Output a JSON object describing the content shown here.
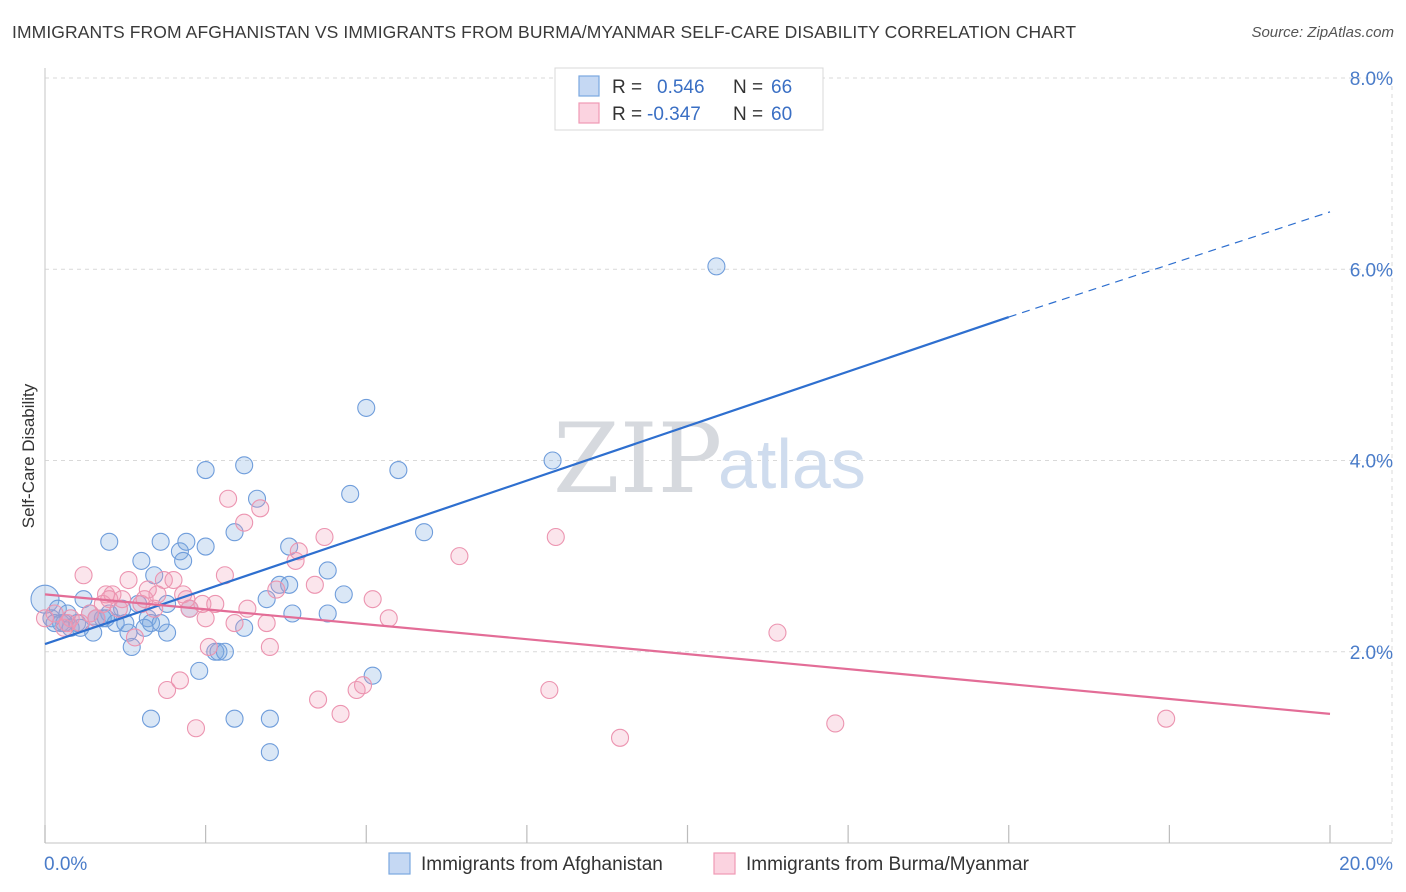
{
  "title": "IMMIGRANTS FROM AFGHANISTAN VS IMMIGRANTS FROM BURMA/MYANMAR SELF-CARE DISABILITY CORRELATION CHART",
  "source": "Source: ZipAtlas.com",
  "watermark": {
    "part1": "ZIP",
    "part2": "atlas"
  },
  "legend": {
    "r_label": "R =",
    "n_label": "N =",
    "rows": [
      {
        "r": "0.546",
        "n": "66",
        "color": "#7aa8e0"
      },
      {
        "r": "-0.347",
        "n": "60",
        "color": "#ef9ab5"
      }
    ]
  },
  "chart_data": {
    "type": "scatter",
    "xlabel": "",
    "ylabel": "Self-Care Disability",
    "xlim": [
      0,
      20
    ],
    "ylim": [
      0,
      8.0
    ],
    "x_tick_labels": [
      "0.0%",
      "20.0%"
    ],
    "y_ticks": [
      2.0,
      4.0,
      6.0,
      8.0
    ],
    "y_tick_labels": [
      "2.0%",
      "4.0%",
      "6.0%",
      "8.0%"
    ],
    "grid": true,
    "legend_position": "top-center",
    "series": [
      {
        "name": "Immigrants from Afghanistan",
        "color": "#7aa8e0",
        "line_color": "#2e6fcf",
        "trend": {
          "x0": 0.0,
          "y0": 2.08,
          "x1": 15.0,
          "y1": 5.5,
          "dash_x1": 20.0,
          "dash_y1": 6.6
        },
        "points": [
          [
            0.0,
            2.55
          ],
          [
            0.1,
            2.35
          ],
          [
            0.2,
            2.45
          ],
          [
            0.25,
            2.3
          ],
          [
            0.35,
            2.4
          ],
          [
            0.4,
            2.25
          ],
          [
            0.5,
            2.3
          ],
          [
            0.6,
            2.55
          ],
          [
            0.7,
            2.4
          ],
          [
            0.75,
            2.2
          ],
          [
            0.9,
            2.35
          ],
          [
            1.0,
            2.4
          ],
          [
            1.1,
            2.3
          ],
          [
            1.2,
            2.45
          ],
          [
            1.3,
            2.2
          ],
          [
            1.35,
            2.05
          ],
          [
            1.45,
            2.5
          ],
          [
            1.5,
            2.95
          ],
          [
            1.0,
            3.15
          ],
          [
            1.6,
            2.35
          ],
          [
            1.65,
            2.3
          ],
          [
            1.7,
            2.8
          ],
          [
            1.8,
            2.3
          ],
          [
            1.9,
            2.5
          ],
          [
            1.8,
            3.15
          ],
          [
            1.9,
            2.2
          ],
          [
            2.1,
            3.05
          ],
          [
            2.15,
            2.95
          ],
          [
            2.2,
            3.15
          ],
          [
            2.5,
            3.1
          ],
          [
            2.5,
            3.9
          ],
          [
            2.4,
            1.8
          ],
          [
            2.65,
            2.0
          ],
          [
            2.7,
            2.0
          ],
          [
            2.8,
            2.0
          ],
          [
            2.95,
            3.25
          ],
          [
            3.1,
            3.95
          ],
          [
            3.1,
            2.25
          ],
          [
            3.3,
            3.6
          ],
          [
            3.45,
            2.55
          ],
          [
            3.65,
            2.7
          ],
          [
            3.8,
            3.1
          ],
          [
            3.85,
            2.4
          ],
          [
            3.8,
            2.7
          ],
          [
            4.4,
            2.85
          ],
          [
            4.4,
            2.4
          ],
          [
            4.65,
            2.6
          ],
          [
            4.75,
            3.65
          ],
          [
            5.0,
            4.55
          ],
          [
            5.1,
            1.75
          ],
          [
            5.5,
            3.9
          ],
          [
            5.9,
            3.25
          ],
          [
            7.9,
            4.0
          ],
          [
            10.45,
            6.03
          ],
          [
            2.95,
            1.3
          ],
          [
            1.65,
            1.3
          ],
          [
            3.5,
            1.3
          ],
          [
            3.5,
            0.95
          ],
          [
            0.55,
            2.25
          ],
          [
            0.8,
            2.35
          ],
          [
            0.3,
            2.3
          ],
          [
            1.25,
            2.3
          ],
          [
            0.15,
            2.3
          ],
          [
            2.25,
            2.45
          ],
          [
            0.95,
            2.35
          ],
          [
            1.55,
            2.25
          ]
        ]
      },
      {
        "name": "Immigrants from Burma/Myanmar",
        "color": "#ef9ab5",
        "line_color": "#e36d97",
        "trend": {
          "x0": 0.0,
          "y0": 2.6,
          "x1": 20.0,
          "y1": 1.35
        },
        "points": [
          [
            0.0,
            2.35
          ],
          [
            0.15,
            2.4
          ],
          [
            0.3,
            2.25
          ],
          [
            0.4,
            2.35
          ],
          [
            0.55,
            2.3
          ],
          [
            0.6,
            2.8
          ],
          [
            0.7,
            2.4
          ],
          [
            0.8,
            2.35
          ],
          [
            0.9,
            2.5
          ],
          [
            0.95,
            2.6
          ],
          [
            1.05,
            2.6
          ],
          [
            1.15,
            2.45
          ],
          [
            1.2,
            2.55
          ],
          [
            1.3,
            2.75
          ],
          [
            1.4,
            2.15
          ],
          [
            1.5,
            2.5
          ],
          [
            1.55,
            2.55
          ],
          [
            1.7,
            2.45
          ],
          [
            1.75,
            2.6
          ],
          [
            1.85,
            2.75
          ],
          [
            1.9,
            1.6
          ],
          [
            2.0,
            2.75
          ],
          [
            2.1,
            1.7
          ],
          [
            2.15,
            2.6
          ],
          [
            2.25,
            2.45
          ],
          [
            2.35,
            1.2
          ],
          [
            2.45,
            2.5
          ],
          [
            2.5,
            2.35
          ],
          [
            2.55,
            2.05
          ],
          [
            2.65,
            2.5
          ],
          [
            2.8,
            2.8
          ],
          [
            2.85,
            3.6
          ],
          [
            2.95,
            2.3
          ],
          [
            3.1,
            3.35
          ],
          [
            3.15,
            2.45
          ],
          [
            3.35,
            3.5
          ],
          [
            3.45,
            2.3
          ],
          [
            3.5,
            2.05
          ],
          [
            3.6,
            2.65
          ],
          [
            3.9,
            2.95
          ],
          [
            3.95,
            3.05
          ],
          [
            4.2,
            2.7
          ],
          [
            4.25,
            1.5
          ],
          [
            4.35,
            3.2
          ],
          [
            4.6,
            1.35
          ],
          [
            4.85,
            1.6
          ],
          [
            4.95,
            1.65
          ],
          [
            5.1,
            2.55
          ],
          [
            5.35,
            2.35
          ],
          [
            6.45,
            3.0
          ],
          [
            7.85,
            1.6
          ],
          [
            7.95,
            3.2
          ],
          [
            8.95,
            1.1
          ],
          [
            11.4,
            2.2
          ],
          [
            12.3,
            1.25
          ],
          [
            17.45,
            1.3
          ],
          [
            0.35,
            2.3
          ],
          [
            1.0,
            2.55
          ],
          [
            1.6,
            2.65
          ],
          [
            2.2,
            2.55
          ]
        ]
      }
    ]
  }
}
